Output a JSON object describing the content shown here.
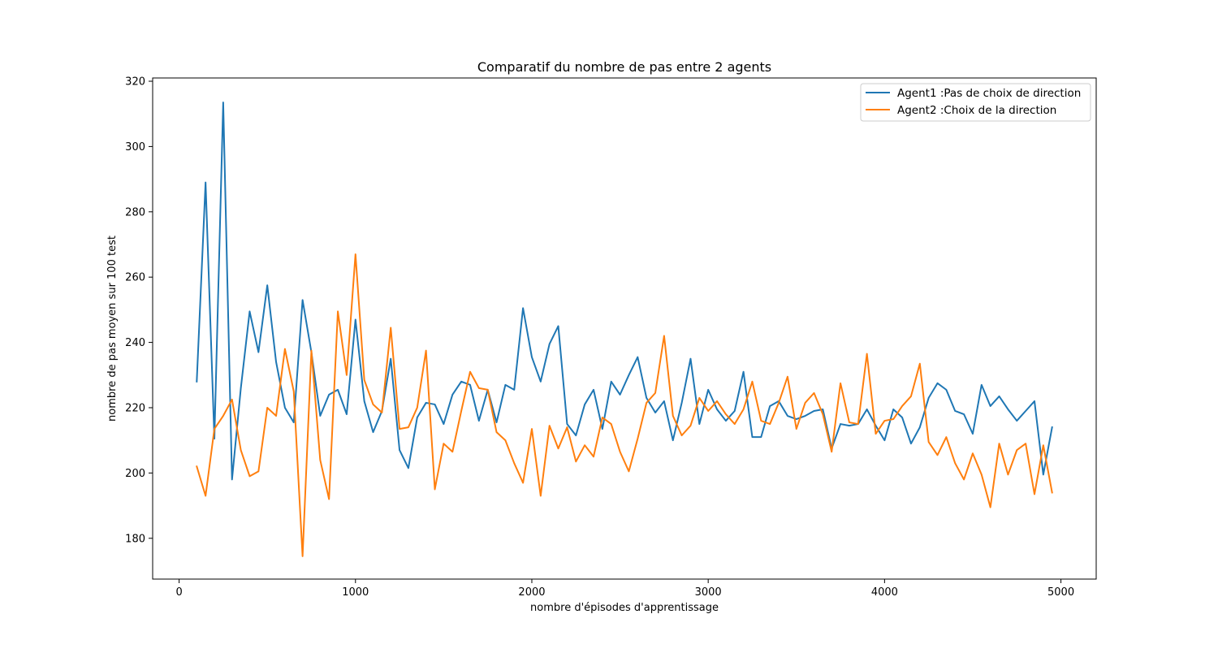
{
  "chart_data": {
    "type": "line",
    "title": "Comparatif du nombre de pas entre 2 agents",
    "xlabel": "nombre d'épisodes d'apprentissage",
    "ylabel": "nombre de pas moyen sur 100 test",
    "xlim": [
      -150,
      5200
    ],
    "ylim": [
      167.5,
      321
    ],
    "xticks": [
      0,
      1000,
      2000,
      3000,
      4000,
      5000
    ],
    "xtick_labels": [
      "0",
      "1000",
      "2000",
      "3000",
      "4000",
      "5000"
    ],
    "yticks": [
      180,
      200,
      220,
      240,
      260,
      280,
      300,
      320
    ],
    "ytick_labels": [
      "180",
      "200",
      "220",
      "240",
      "260",
      "280",
      "300",
      "320"
    ],
    "grid": false,
    "legend_position": "top-right",
    "x": [
      100,
      150,
      200,
      250,
      300,
      350,
      400,
      450,
      500,
      550,
      600,
      650,
      700,
      750,
      800,
      850,
      900,
      950,
      1000,
      1050,
      1100,
      1150,
      1200,
      1250,
      1300,
      1350,
      1400,
      1450,
      1500,
      1550,
      1600,
      1650,
      1700,
      1750,
      1800,
      1850,
      1900,
      1950,
      2000,
      2050,
      2100,
      2150,
      2200,
      2250,
      2300,
      2350,
      2400,
      2450,
      2500,
      2550,
      2600,
      2650,
      2700,
      2750,
      2800,
      2850,
      2900,
      2950,
      3000,
      3050,
      3100,
      3150,
      3200,
      3250,
      3300,
      3350,
      3400,
      3450,
      3500,
      3550,
      3600,
      3650,
      3700,
      3750,
      3800,
      3850,
      3900,
      3950,
      4000,
      4050,
      4100,
      4150,
      4200,
      4250,
      4300,
      4350,
      4400,
      4450,
      4500,
      4550,
      4600,
      4650,
      4700,
      4750,
      4800,
      4850,
      4900,
      4950
    ],
    "series": [
      {
        "name": "Agent1 :Pas de choix de direction",
        "color": "#1f77b4",
        "values": [
          228,
          289,
          210.5,
          313.5,
          198,
          226,
          249.5,
          237,
          257.5,
          234,
          220,
          215.5,
          253,
          237,
          217.5,
          224,
          225.5,
          218,
          247,
          222,
          212.5,
          219,
          235,
          207,
          201.5,
          217,
          221.5,
          221,
          215,
          224,
          228,
          227,
          216,
          225.5,
          215.5,
          227,
          225.5,
          250.5,
          235.5,
          228,
          239.5,
          245,
          215,
          211.5,
          221,
          225.5,
          213.5,
          228,
          224,
          230,
          235.5,
          223,
          218.5,
          222,
          210,
          221.5,
          235,
          215,
          225.5,
          219.5,
          216,
          219,
          231,
          211,
          211,
          220.5,
          222,
          217.5,
          216.5,
          217.5,
          219,
          219.5,
          207.5,
          215,
          214.5,
          215,
          219.5,
          214.5,
          210,
          219.5,
          217,
          209,
          214,
          223,
          227.5,
          225.5,
          219,
          218,
          212,
          227,
          220.5,
          223.5,
          219.5,
          216,
          219,
          222,
          199.5,
          214
        ]
      },
      {
        "name": "Agent2 :Choix de la direction",
        "color": "#ff7f0e",
        "values": [
          202,
          193,
          213.5,
          217.5,
          222.5,
          207,
          199,
          200.5,
          220,
          217.5,
          238,
          225,
          174.5,
          237.5,
          204,
          192,
          249.5,
          230,
          267,
          228.5,
          221,
          218.5,
          244.5,
          213.5,
          214,
          220,
          237.5,
          195,
          209,
          206.5,
          219,
          231,
          226,
          225.5,
          212.5,
          210,
          203,
          197,
          213.5,
          193,
          214.5,
          207.5,
          214,
          203.5,
          208.5,
          205,
          217,
          215,
          206.5,
          200.5,
          210.5,
          221.5,
          224.5,
          242,
          217.5,
          211.5,
          214.5,
          223,
          219,
          222,
          218,
          215,
          219.5,
          228,
          216,
          215,
          221.5,
          229.5,
          213.5,
          221.5,
          224.5,
          218,
          206.5,
          227.5,
          215.5,
          215,
          236.5,
          212,
          216,
          216.5,
          220.5,
          223.5,
          233.5,
          209.5,
          205.5,
          211,
          203,
          198,
          206,
          199.5,
          189.5,
          209,
          199.5,
          207,
          209,
          193.5,
          208.5,
          194
        ]
      }
    ]
  }
}
